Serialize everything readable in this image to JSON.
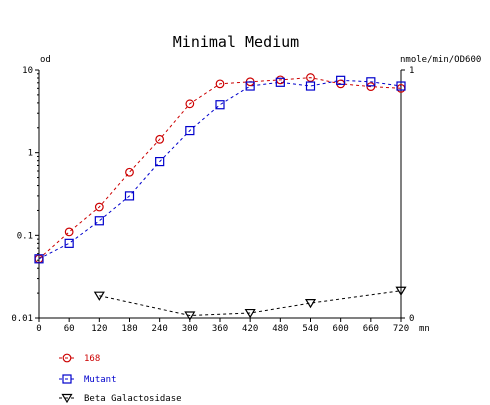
{
  "chart_data": {
    "type": "line",
    "title": "Minimal Medium",
    "left_axis_label": "od",
    "right_axis_label": "nmole/min/OD600",
    "x_unit": "mn",
    "left_scale": "log",
    "left_ylim": [
      0.01,
      10
    ],
    "left_ticks": [
      "10",
      "1",
      "0.1",
      "0.01"
    ],
    "right_ylim": [
      0,
      1
    ],
    "right_ticks": [
      "1",
      "0"
    ],
    "xlim": [
      0,
      720
    ],
    "x_ticks": [
      "0",
      "60",
      "120",
      "180",
      "240",
      "300",
      "360",
      "420",
      "480",
      "540",
      "600",
      "660",
      "720"
    ],
    "grid": false,
    "legend_position": "bottom-left",
    "series": [
      {
        "name": "168",
        "axis": "left",
        "marker": "circle",
        "color": "#cc0000",
        "x": [
          0,
          60,
          120,
          180,
          240,
          300,
          360,
          420,
          480,
          540,
          600,
          660,
          720
        ],
        "y": [
          0.052,
          0.11,
          0.22,
          0.58,
          1.45,
          3.9,
          6.8,
          7.2,
          7.6,
          8.1,
          6.8,
          6.3,
          6.0
        ]
      },
      {
        "name": "Mutant",
        "axis": "left",
        "marker": "square",
        "color": "#0000cc",
        "x": [
          0,
          60,
          120,
          180,
          240,
          300,
          360,
          420,
          480,
          540,
          600,
          660,
          720
        ],
        "y": [
          0.052,
          0.08,
          0.15,
          0.3,
          0.78,
          1.85,
          3.8,
          6.4,
          7.1,
          6.4,
          7.5,
          7.2,
          6.4
        ]
      },
      {
        "name": "Beta Galactosidase",
        "axis": "right",
        "marker": "triangle-down",
        "color": "#000000",
        "x": [
          120,
          300,
          420,
          540,
          720
        ],
        "y": [
          0.09,
          0.01,
          0.02,
          0.06,
          0.11
        ]
      }
    ]
  }
}
